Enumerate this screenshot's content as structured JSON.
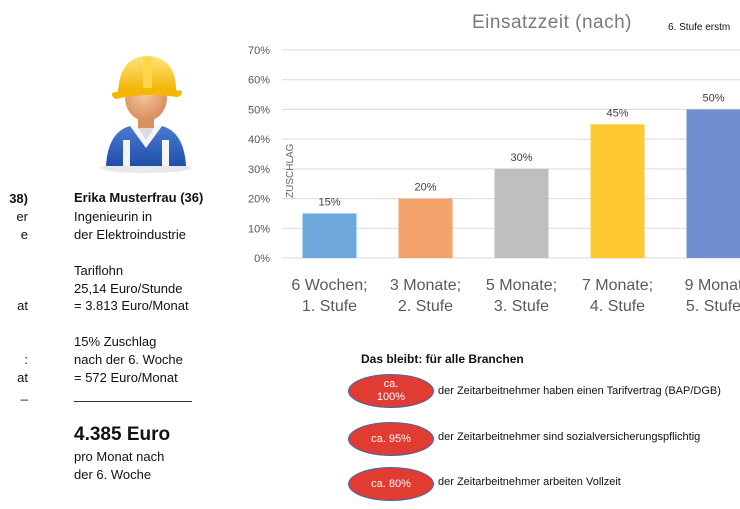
{
  "left_partial": {
    "lines": [
      {
        "text": "38)",
        "bold": true
      },
      {
        "text": "er",
        "bold": false
      },
      {
        "text": "e",
        "bold": false
      },
      {
        "text": "at",
        "bold": false
      },
      {
        "text": ":",
        "bold": false
      },
      {
        "text": "at",
        "bold": false
      },
      {
        "text": "_",
        "bold": false
      }
    ]
  },
  "person": {
    "avatar_icon": "construction-worker-icon",
    "name": "Erika Musterfrau (36)",
    "job_line1": "Ingenieurin in",
    "job_line2": "der Elektroindustrie",
    "tarif_label": "Tariflohn",
    "hourly": "25,14 Euro/Stunde",
    "monthly": "= 3.813 Euro/Monat",
    "zuschlag_line1": "15% Zuschlag",
    "zuschlag_line2": "nach der 6. Woche",
    "zuschlag_line3": "=   572 Euro/Monat",
    "total": "4.385 Euro",
    "total_sub1": "pro Monat nach",
    "total_sub2": "der 6. Woche"
  },
  "chart_data": {
    "type": "bar",
    "title": "Einsatzzeit (nach)",
    "note": "6. Stufe erstm",
    "ylabel": "ZUSCHLAG",
    "ylim": [
      0,
      70
    ],
    "yticks": [
      "0%",
      "10%",
      "20%",
      "30%",
      "40%",
      "50%",
      "60%",
      "70%"
    ],
    "grid": true,
    "categories": [
      {
        "line1": "6 Wochen;",
        "line2": "1. Stufe"
      },
      {
        "line1": "3 Monate;",
        "line2": "2. Stufe"
      },
      {
        "line1": "5 Monate;",
        "line2": "3. Stufe"
      },
      {
        "line1": "7 Monate;",
        "line2": "4. Stufe"
      },
      {
        "line1": "9 Monat",
        "line2": "5. Stufe"
      }
    ],
    "values": [
      15,
      20,
      30,
      45,
      50
    ],
    "value_labels": [
      "15%",
      "20%",
      "30%",
      "45%",
      "50%"
    ],
    "colors": [
      "#6fa8dc",
      "#f4a26b",
      "#bfbfbf",
      "#ffc934",
      "#6f8fd0"
    ]
  },
  "bleibt": {
    "title": "Das bleibt: für alle Branchen",
    "badge_color": "#e03c31",
    "items": [
      {
        "badge_line1": "ca.",
        "badge_line2": "100%",
        "text": "der Zeitarbeitnehmer haben einen Tarifvertrag (BAP/DGB)"
      },
      {
        "badge_line1": "ca. 95%",
        "badge_line2": "",
        "text": "der Zeitarbeitnehmer sind sozialversicherungspflichtig"
      },
      {
        "badge_line1": "ca. 80%",
        "badge_line2": "",
        "text": "der Zeitarbeitnehmer arbeiten Vollzeit"
      }
    ]
  }
}
